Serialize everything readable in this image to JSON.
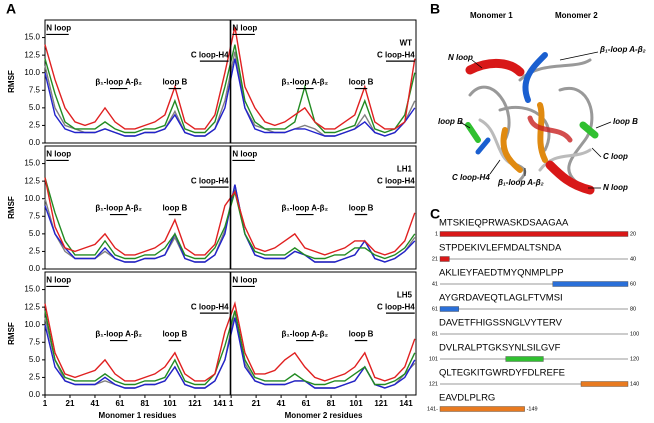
{
  "panel_labels": [
    "A",
    "B",
    "C"
  ],
  "chart_data": [
    {
      "type": "line",
      "label": "WT",
      "ylabel": "RMSF",
      "xlim": [
        1,
        298
      ],
      "ylim": [
        0,
        17.5
      ],
      "yticks": [
        {
          "value": 0,
          "label": "0.0"
        },
        2.5,
        {
          "value": 5,
          "label": "5.0"
        },
        7.5,
        {
          "value": 10,
          "label": "10.0"
        },
        12.5,
        {
          "value": 15,
          "label": "15.0"
        }
      ],
      "annotations": [
        "N loop",
        "β₁-loop A-β₂",
        "loop B",
        "C loop-H4",
        "N loop",
        "β₁-loop A-β₂",
        "loop B",
        "C loop-H4"
      ],
      "x": [
        1,
        9,
        17,
        25,
        33,
        41,
        49,
        57,
        65,
        73,
        81,
        89,
        97,
        105,
        113,
        121,
        129,
        137,
        145,
        153,
        161,
        169,
        177,
        185,
        193,
        201,
        209,
        217,
        225,
        233,
        241,
        249,
        257,
        265,
        273,
        281,
        289,
        297
      ],
      "series": [
        {
          "color": "#808080",
          "values": [
            11,
            5,
            2.5,
            2,
            1.5,
            1.5,
            2,
            1.5,
            1,
            1,
            1.5,
            1.5,
            2,
            4.5,
            1.5,
            1,
            1,
            2,
            6,
            13,
            5,
            2.5,
            2,
            1.5,
            1.5,
            2,
            2.5,
            2,
            1,
            1,
            1.5,
            2,
            4,
            1.5,
            1,
            1.5,
            3,
            6
          ]
        },
        {
          "color": "#2222cc",
          "values": [
            10,
            4,
            2,
            1.5,
            1.5,
            1.5,
            2,
            1.5,
            1,
            1,
            1.5,
            1.5,
            2,
            4,
            1.5,
            1,
            1,
            2,
            5,
            12,
            5,
            2,
            1.5,
            1.5,
            1.5,
            2,
            2,
            1.5,
            1,
            1,
            1.5,
            2,
            3,
            1.5,
            1,
            1.5,
            3,
            5
          ]
        },
        {
          "color": "#228b22",
          "values": [
            12,
            7,
            3,
            2,
            2,
            2,
            3,
            2,
            1.5,
            1.5,
            2,
            2,
            2.5,
            6,
            2,
            1.5,
            1.5,
            3,
            8,
            14,
            6,
            3,
            2,
            2,
            2,
            3,
            8,
            3,
            1.5,
            1.5,
            2,
            2.5,
            6,
            2,
            1.5,
            2,
            4,
            10
          ]
        },
        {
          "color": "#e02020",
          "values": [
            14,
            9,
            5,
            3,
            2.5,
            3,
            5,
            3,
            2,
            2,
            2.5,
            3,
            4,
            8,
            3,
            2,
            2,
            4,
            10,
            16.5,
            8,
            5,
            3,
            2.5,
            3,
            4,
            5,
            3,
            2,
            2,
            3,
            4,
            8,
            3,
            2,
            2,
            3,
            12
          ]
        }
      ]
    },
    {
      "type": "line",
      "label": "LH1",
      "ylabel": "RMSF",
      "xlim": [
        1,
        298
      ],
      "ylim": [
        0,
        17.5
      ],
      "yticks": [
        {
          "value": 0,
          "label": "0.0"
        },
        2.5,
        {
          "value": 5,
          "label": "5.0"
        },
        7.5,
        {
          "value": 10,
          "label": "10.0"
        },
        12.5,
        {
          "value": 15,
          "label": "15.0"
        }
      ],
      "annotations": [
        "N loop",
        "β₁-loop A-β₂",
        "loop B",
        "C loop-H4",
        "N loop",
        "β₁-loop A-β₂",
        "loop B",
        "C loop-H4"
      ],
      "x": [
        1,
        9,
        17,
        25,
        33,
        41,
        49,
        57,
        65,
        73,
        81,
        89,
        97,
        105,
        113,
        121,
        129,
        137,
        145,
        153,
        161,
        169,
        177,
        185,
        193,
        201,
        209,
        217,
        225,
        233,
        241,
        249,
        257,
        265,
        273,
        281,
        289,
        297
      ],
      "series": [
        {
          "color": "#808080",
          "values": [
            10,
            5,
            2.5,
            1.5,
            1.5,
            1.5,
            2.5,
            1.5,
            1,
            1,
            1.5,
            1.5,
            2,
            4.5,
            1.5,
            1,
            1,
            2,
            5.5,
            12,
            5,
            2,
            1.5,
            1.5,
            1.5,
            2.5,
            2,
            1,
            1,
            1,
            1.5,
            2,
            4,
            1.5,
            1,
            1.5,
            2.5,
            4.5
          ]
        },
        {
          "color": "#2222cc",
          "values": [
            9,
            5,
            3,
            1.5,
            1.5,
            1.5,
            3,
            1.5,
            1,
            1,
            1.5,
            1.5,
            2,
            5,
            1.5,
            1,
            1,
            2,
            5,
            12,
            5,
            2,
            1.5,
            1.5,
            1.5,
            2.5,
            2,
            1,
            1,
            1,
            1.5,
            2,
            4,
            1.5,
            1,
            1.5,
            2.5,
            4
          ]
        },
        {
          "color": "#228b22",
          "values": [
            13,
            8,
            4,
            2,
            2,
            2,
            4,
            2,
            1.5,
            1.5,
            2,
            2,
            3,
            5,
            2,
            1.5,
            1.5,
            3,
            6,
            11,
            5,
            2.5,
            2,
            2,
            2,
            3,
            2,
            1.5,
            1.5,
            2,
            2,
            3,
            3,
            2,
            1.5,
            2,
            3,
            5
          ]
        },
        {
          "color": "#e02020",
          "values": [
            13,
            6,
            3,
            2.5,
            3,
            3.5,
            5,
            3,
            2,
            2,
            2.5,
            3,
            4,
            7,
            3,
            2,
            2,
            3.5,
            9,
            11,
            6,
            3,
            2.5,
            3,
            4,
            5,
            3,
            2.5,
            2,
            2.5,
            3,
            4,
            4,
            2.5,
            2,
            2.5,
            4,
            8
          ]
        }
      ]
    },
    {
      "type": "line",
      "label": "LH5",
      "ylabel": "RMSF",
      "xlim": [
        1,
        298
      ],
      "ylim": [
        0,
        17.5
      ],
      "yticks": [
        {
          "value": 0,
          "label": "0.0"
        },
        2.5,
        {
          "value": 5,
          "label": "5.0"
        },
        7.5,
        {
          "value": 10,
          "label": "10.0"
        },
        12.5,
        {
          "value": 15,
          "label": "15.0"
        }
      ],
      "xticks": [
        1,
        21,
        41,
        61,
        81,
        101,
        121,
        141,
        {
          "value": 150,
          "label": "1"
        },
        {
          "value": 170,
          "label": "21"
        },
        {
          "value": 190,
          "label": "41"
        },
        {
          "value": 210,
          "label": "61"
        },
        {
          "value": 230,
          "label": "81"
        },
        {
          "value": 250,
          "label": "101"
        },
        {
          "value": 270,
          "label": "121"
        },
        {
          "value": 290,
          "label": "141"
        }
      ],
      "xlabels": [
        "Monomer 1 residues",
        "Monomer 2 residues"
      ],
      "annotations": [
        "N loop",
        "β₁-loop A-β₂",
        "loop B",
        "C loop-H4",
        "N loop",
        "β₁-loop A-β₂",
        "loop B",
        "C loop-H4"
      ],
      "x": [
        1,
        9,
        17,
        25,
        33,
        41,
        49,
        57,
        65,
        73,
        81,
        89,
        97,
        105,
        113,
        121,
        129,
        137,
        145,
        153,
        161,
        169,
        177,
        185,
        193,
        201,
        209,
        217,
        225,
        233,
        241,
        249,
        257,
        265,
        273,
        281,
        289,
        297
      ],
      "series": [
        {
          "color": "#808080",
          "values": [
            11,
            5,
            2,
            1.5,
            1.5,
            1.5,
            2,
            1.5,
            1,
            1,
            1.5,
            1.5,
            2,
            4,
            1.5,
            1,
            1,
            2,
            5,
            12,
            4.5,
            2,
            1.5,
            1.5,
            1.5,
            2,
            2,
            1,
            1,
            1,
            1.5,
            2,
            4,
            1.5,
            1,
            1.5,
            3,
            4.5
          ]
        },
        {
          "color": "#2222cc",
          "values": [
            10,
            4,
            2,
            1.5,
            1.5,
            1.5,
            2.5,
            1.5,
            1,
            1,
            1.5,
            1.5,
            2,
            4,
            1.5,
            1,
            1,
            2,
            5,
            11,
            4,
            2,
            1.5,
            1.5,
            1.5,
            2,
            2,
            1,
            1,
            1,
            1.5,
            2,
            4,
            1.5,
            1,
            1.5,
            2.5,
            5
          ]
        },
        {
          "color": "#228b22",
          "values": [
            12,
            5,
            2.5,
            2,
            2,
            2,
            3,
            2,
            1.5,
            1.5,
            2,
            2,
            2.5,
            5,
            2,
            1.5,
            1.5,
            3,
            7,
            12,
            5,
            2.5,
            2,
            2,
            2,
            3,
            2,
            1.5,
            1.5,
            2,
            2,
            3,
            4,
            1.5,
            1.5,
            2,
            3,
            6
          ]
        },
        {
          "color": "#e02020",
          "values": [
            13,
            6,
            3,
            2.5,
            3,
            3.5,
            5,
            3,
            2,
            2,
            2.5,
            3,
            4,
            6,
            3,
            2,
            2,
            3,
            9,
            13,
            6,
            3,
            3,
            3.5,
            5,
            6,
            4,
            2.5,
            2,
            2.5,
            3,
            4,
            6,
            2.5,
            2,
            2.5,
            4,
            8
          ]
        }
      ]
    }
  ],
  "structure": {
    "monomers": [
      "Monomer 1",
      "Monomer 2"
    ],
    "labels": [
      "N loop",
      "β₁-loop A-β₂",
      "loop B",
      "loop B",
      "C loop",
      "C loop-H4",
      "β₁-loop A-β₂",
      "N loop"
    ]
  },
  "sequence": [
    {
      "start": "1",
      "seq": "MTSKIEQPRWASKDSAAGAA",
      "end": "20"
    },
    {
      "start": "21",
      "seq": "STPDEKIVLEFMDALTSNDA",
      "end": "40"
    },
    {
      "start": "41",
      "seq": "AKLIEYFAEDTMYQNMPLPP",
      "end": "60"
    },
    {
      "start": "61",
      "seq": "AYGRDAVEQTLAGLFTVMSI",
      "end": "80"
    },
    {
      "start": "81",
      "seq": "DAVETFHIGSSNGLVYTERV",
      "end": "100"
    },
    {
      "start": "101",
      "seq": "DVLRALPTGKSYNLSILGVF",
      "end": "120"
    },
    {
      "start": "121",
      "seq": "QLTEGKITGWRDYFDLREFE",
      "end": "140"
    },
    {
      "start": "141-",
      "seq": "EAVDLPLRG",
      "end": "-149"
    }
  ]
}
